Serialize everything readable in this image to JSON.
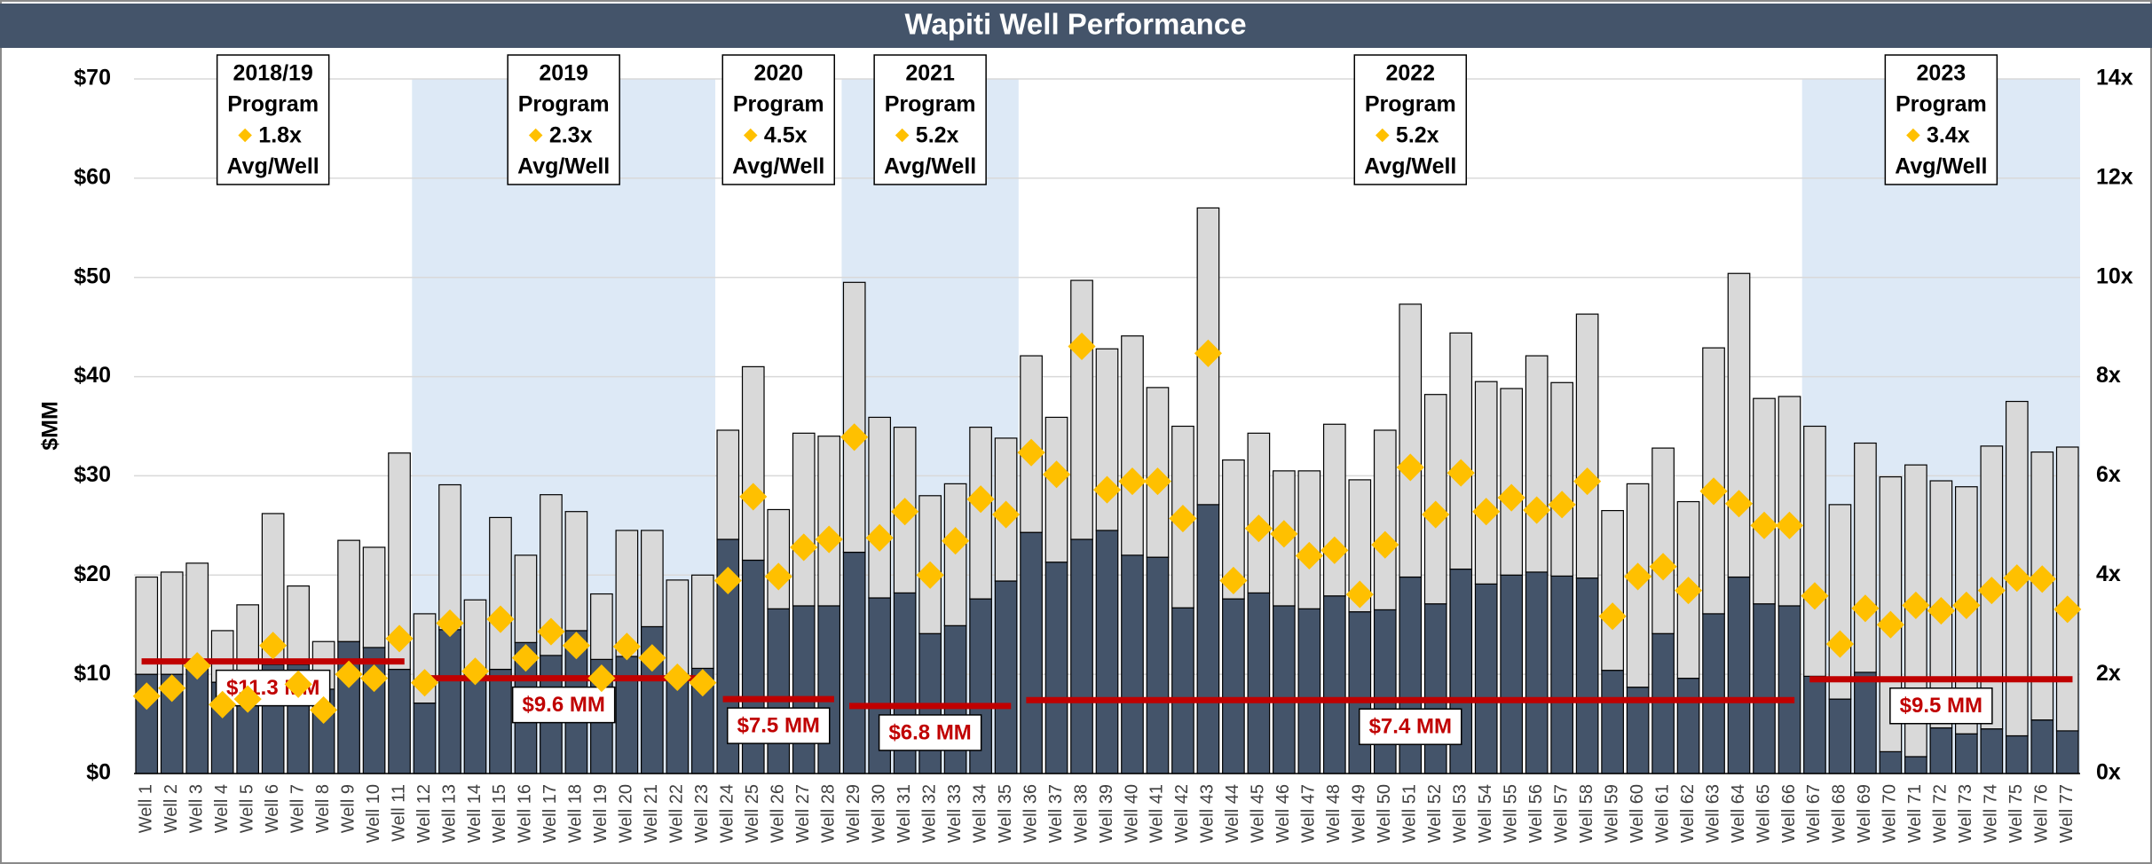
{
  "chart_data": {
    "type": "bar",
    "title": "Wapiti Well Performance",
    "y_label": "$MM",
    "categories": [
      "Well 1",
      "Well 2",
      "Well 3",
      "Well 4",
      "Well 5",
      "Well 6",
      "Well 7",
      "Well 8",
      "Well 9",
      "Well 10",
      "Well 11",
      "Well 12",
      "Well 13",
      "Well 14",
      "Well 15",
      "Well 16",
      "Well 17",
      "Well 18",
      "Well 19",
      "Well 20",
      "Well 21",
      "Well 22",
      "Well 23",
      "Well 24",
      "Well 25",
      "Well 26",
      "Well 27",
      "Well 28",
      "Well 29",
      "Well 30",
      "Well 31",
      "Well 32",
      "Well 33",
      "Well 34",
      "Well 35",
      "Well 36",
      "Well 37",
      "Well 38",
      "Well 39",
      "Well 40",
      "Well 41",
      "Well 42",
      "Well 43",
      "Well 44",
      "Well 45",
      "Well 46",
      "Well 47",
      "Well 48",
      "Well 49",
      "Well 50",
      "Well 51",
      "Well 52",
      "Well 53",
      "Well 54",
      "Well 55",
      "Well 56",
      "Well 57",
      "Well 58",
      "Well 59",
      "Well 60",
      "Well 61",
      "Well 62",
      "Well 63",
      "Well 64",
      "Well 65",
      "Well 66",
      "Well 67",
      "Well 68",
      "Well 69",
      "Well 70",
      "Well 71",
      "Well 72",
      "Well 73",
      "Well 74",
      "Well 75",
      "Well 76",
      "Well 77"
    ],
    "series": [
      {
        "color": "#44546a",
        "values": [
          10,
          10,
          10.5,
          9.2,
          8.5,
          11,
          11,
          8.5,
          13.3,
          12.7,
          10.5,
          7.1,
          14.5,
          10,
          10.5,
          13.2,
          11.9,
          14.4,
          11.5,
          11.8,
          14.8,
          10,
          10.6,
          23.6,
          21.5,
          16.6,
          16.9,
          16.9,
          22.3,
          17.7,
          18.2,
          14.1,
          14.9,
          17.6,
          19.4,
          24.3,
          21.3,
          23.6,
          24.5,
          22,
          21.8,
          16.7,
          27.1,
          17.6,
          18.2,
          16.9,
          16.6,
          17.9,
          16.3,
          16.5,
          19.8,
          17.1,
          20.6,
          19.1,
          20,
          20.3,
          19.9,
          19.7,
          10.4,
          8.7,
          14.1,
          9.6,
          16.1,
          19.8,
          17.1,
          16.9,
          9.8,
          7.5,
          10.2,
          2.2,
          1.7,
          4.6,
          4,
          4.5,
          3.8,
          5.4,
          4.3
        ]
      },
      {
        "color": "#d9d9d9",
        "values": [
          9.8,
          10.3,
          10.7,
          5.2,
          8.5,
          15.2,
          7.9,
          4.8,
          10.2,
          10.1,
          21.8,
          9,
          14.6,
          7.5,
          15.3,
          8.8,
          16.2,
          12,
          6.6,
          12.7,
          9.7,
          9.5,
          9.4,
          11,
          19.5,
          10,
          17.4,
          17.1,
          27.2,
          18.2,
          16.7,
          13.9,
          14.3,
          17.3,
          14.4,
          17.8,
          14.6,
          26.1,
          18.3,
          22.1,
          17.1,
          18.3,
          29.9,
          14,
          16.1,
          13.6,
          13.9,
          17.3,
          13.3,
          18.1,
          27.5,
          21.1,
          23.8,
          20.4,
          18.8,
          21.8,
          19.5,
          26.6,
          16.1,
          20.5,
          18.7,
          17.8,
          26.8,
          30.6,
          20.7,
          21.1,
          25.2,
          19.6,
          23.1,
          27.7,
          29.4,
          24.9,
          24.9,
          28.5,
          33.7,
          27,
          28.6
        ]
      },
      {
        "type": "scatter",
        "axis": "y2",
        "color": "#ffc000",
        "values": [
          1.56,
          1.72,
          2.17,
          1.39,
          1.5,
          2.58,
          1.8,
          1.28,
          2,
          1.92,
          2.72,
          1.83,
          3.03,
          2.06,
          3.11,
          2.33,
          2.86,
          2.58,
          1.92,
          2.56,
          2.33,
          1.94,
          1.83,
          3.89,
          5.58,
          3.97,
          4.56,
          4.72,
          6.78,
          4.75,
          5.28,
          4,
          4.69,
          5.53,
          5.22,
          6.47,
          6.03,
          8.61,
          5.72,
          5.89,
          5.89,
          5.14,
          8.47,
          3.89,
          4.94,
          4.83,
          4.39,
          4.5,
          3.61,
          4.61,
          6.17,
          5.22,
          6.06,
          5.28,
          5.56,
          5.31,
          5.42,
          5.89,
          3.17,
          3.97,
          4.17,
          3.69,
          5.69,
          5.44,
          5,
          5,
          3.58,
          2.61,
          3.33,
          3,
          3.39,
          3.28,
          3.39,
          3.69,
          3.94,
          3.92,
          3.31
        ]
      }
    ],
    "programs": [
      {
        "year": "2018/19",
        "line2": "Program",
        "multiple": "1.8x",
        "line4": "Avg/Well",
        "first": "Well 1",
        "last": "Well 11",
        "shaded": false,
        "avg": 11.3,
        "avg_label": "$11.3 MM"
      },
      {
        "year": "2019",
        "line2": "Program",
        "multiple": "2.3x",
        "line4": "Avg/Well",
        "first": "Well 12",
        "last": "Well 23",
        "shaded": true,
        "avg": 9.6,
        "avg_label": "$9.6 MM"
      },
      {
        "year": "2020",
        "line2": "Program",
        "multiple": "4.5x",
        "line4": "Avg/Well",
        "first": "Well 24",
        "last": "Well 28",
        "shaded": false,
        "avg": 7.5,
        "avg_label": "$7.5 MM"
      },
      {
        "year": "2021",
        "line2": "Program",
        "multiple": "5.2x",
        "line4": "Avg/Well",
        "first": "Well 29",
        "last": "Well 35",
        "shaded": true,
        "avg": 6.8,
        "avg_label": "$6.8 MM"
      },
      {
        "year": "2022",
        "line2": "Program",
        "multiple": "5.2x",
        "line4": "Avg/Well",
        "first": "Well 36",
        "last": "Well 66",
        "shaded": false,
        "avg": 7.4,
        "avg_label": "$7.4 MM"
      },
      {
        "year": "2023",
        "line2": "Program",
        "multiple": "3.4x",
        "line4": "Avg/Well",
        "first": "Well 67",
        "last": "Well 77",
        "shaded": true,
        "avg": 9.5,
        "avg_label": "$9.5 MM"
      }
    ],
    "ylim": [
      0,
      70
    ],
    "yticks": [
      {
        "value": 0,
        "label": "$0"
      },
      {
        "value": 10,
        "label": "$10"
      },
      {
        "value": 20,
        "label": "$20"
      },
      {
        "value": 30,
        "label": "$30"
      },
      {
        "value": 40,
        "label": "$40"
      },
      {
        "value": 50,
        "label": "$50"
      },
      {
        "value": 60,
        "label": "$60"
      },
      {
        "value": 70,
        "label": "$70"
      }
    ],
    "y2lim": [
      0,
      14
    ],
    "y2ticks": [
      {
        "value": 0,
        "label": "0x"
      },
      {
        "value": 2,
        "label": "2x"
      },
      {
        "value": 4,
        "label": "4x"
      },
      {
        "value": 6,
        "label": "6x"
      },
      {
        "value": 8,
        "label": "8x"
      },
      {
        "value": 10,
        "label": "10x"
      },
      {
        "value": 12,
        "label": "12x"
      },
      {
        "value": 14,
        "label": "14x"
      }
    ],
    "grid": true,
    "avg_color": "#c00000",
    "shade_color": "#dde9f6"
  }
}
